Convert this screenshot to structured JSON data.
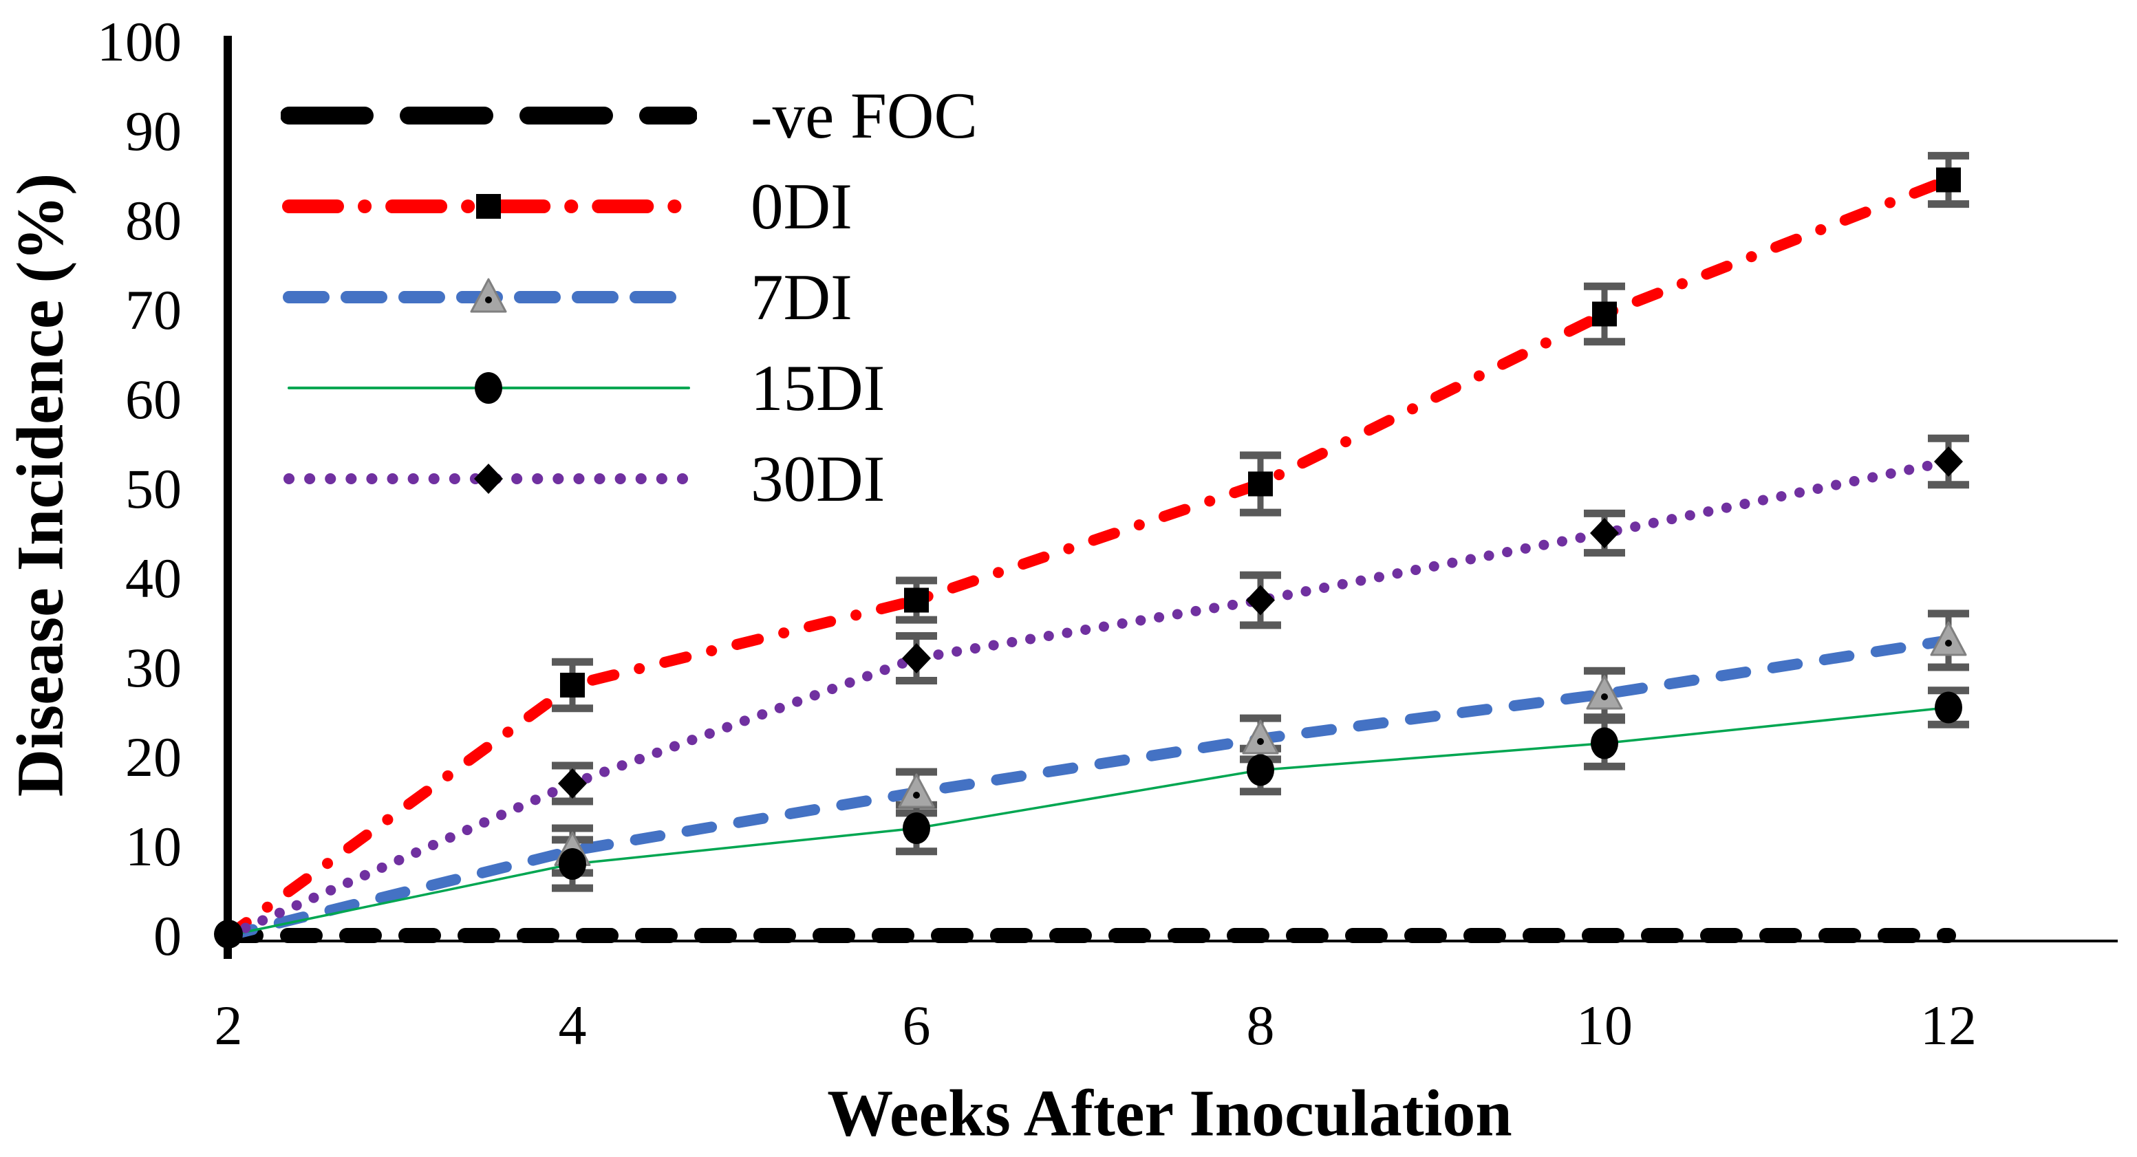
{
  "chart_data": {
    "type": "line",
    "title": "",
    "xlabel": "Weeks After Inoculation",
    "ylabel": "Disease Incidence (%)",
    "x": [
      2,
      4,
      6,
      8,
      10,
      12
    ],
    "x_ticks": [
      "2",
      "4",
      "6",
      "8",
      "10",
      "12"
    ],
    "y_ticks": [
      "0",
      "10",
      "20",
      "30",
      "40",
      "50",
      "60",
      "70",
      "80",
      "90",
      "100"
    ],
    "xlim": [
      2,
      12
    ],
    "ylim": [
      0,
      100
    ],
    "grid": false,
    "legend_position": "top-left",
    "error_bar_color": "#595959",
    "axis_color": "#000000",
    "series": [
      {
        "name": "-ve FOC",
        "values": [
          0,
          0,
          0,
          0,
          0,
          0
        ],
        "errors": [
          0,
          0,
          0,
          0,
          0,
          0
        ],
        "color": "#000000",
        "line": "dash-thick",
        "marker": "none",
        "marker_color": "#000000"
      },
      {
        "name": "0DI",
        "values": [
          0,
          28,
          37.5,
          50.5,
          69.5,
          84.5
        ],
        "errors": [
          0,
          2.6,
          2.2,
          3.2,
          3.1,
          2.7
        ],
        "color": "#FF0000",
        "line": "dash-dot",
        "marker": "square",
        "marker_color": "#000000"
      },
      {
        "name": "7DI",
        "values": [
          0,
          9.5,
          16,
          22,
          27,
          33
        ],
        "errors": [
          0,
          2.5,
          2.3,
          2.3,
          2.6,
          3.0
        ],
        "color": "#4472C4",
        "line": "dash",
        "marker": "triangle",
        "marker_color": "#A6A6A6"
      },
      {
        "name": "15DI",
        "values": [
          0,
          8,
          12,
          18.5,
          21.5,
          25.5
        ],
        "errors": [
          0,
          2.7,
          2.6,
          2.4,
          2.6,
          1.9
        ],
        "color": "#00A651",
        "line": "solid-thin",
        "marker": "circle",
        "marker_color": "#000000"
      },
      {
        "name": "30DI",
        "values": [
          0,
          17,
          31,
          37.5,
          45,
          53
        ],
        "errors": [
          0,
          2.0,
          2.5,
          2.8,
          2.2,
          2.6
        ],
        "color": "#7030A0",
        "line": "dot",
        "marker": "diamond",
        "marker_color": "#000000"
      }
    ]
  }
}
